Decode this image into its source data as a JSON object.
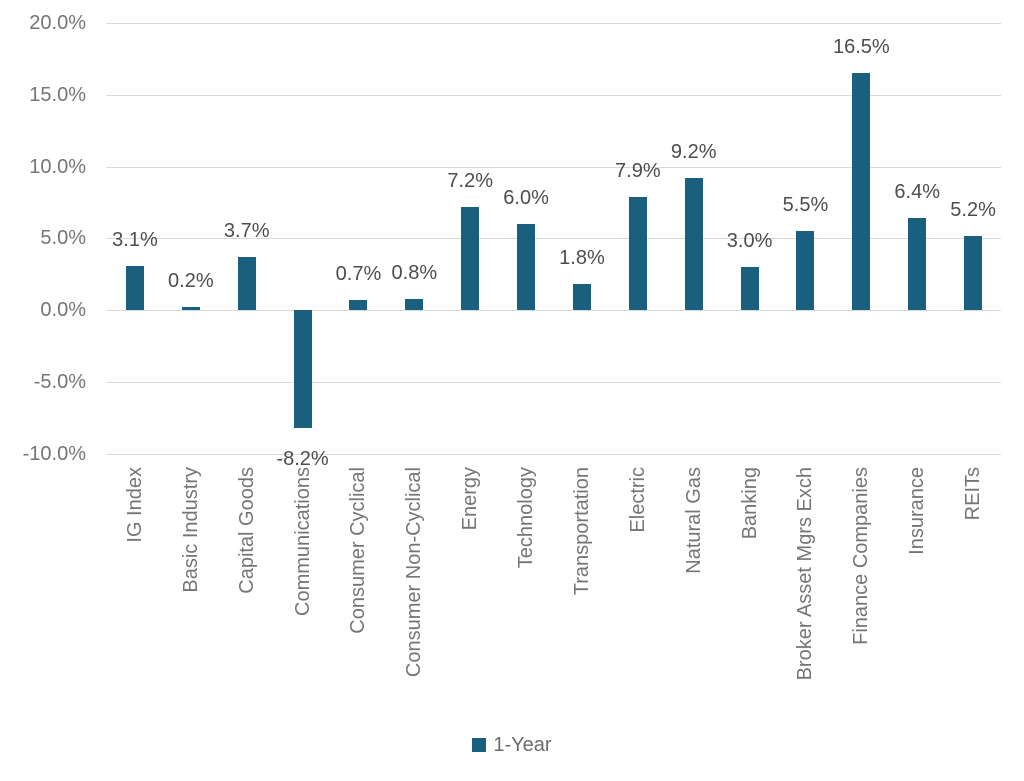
{
  "chart_data": {
    "type": "bar",
    "title": "",
    "categories": [
      "IG Index",
      "Basic Industry",
      "Capital Goods",
      "Communications",
      "Consumer Cyclical",
      "Consumer Non-Cyclical",
      "Energy",
      "Technology",
      "Transportation",
      "Electric",
      "Natural Gas",
      "Banking",
      "Broker Asset Mgrs Exch",
      "Finance Companies",
      "Insurance",
      "REITs"
    ],
    "series": [
      {
        "name": "1-Year",
        "values": [
          3.1,
          0.2,
          3.7,
          -8.2,
          0.7,
          0.8,
          7.2,
          6.0,
          1.8,
          7.9,
          9.2,
          3.0,
          5.5,
          16.5,
          6.4,
          5.2
        ]
      }
    ],
    "data_labels": [
      "3.1%",
      "0.2%",
      "3.7%",
      "-8.2%",
      "0.7%",
      "0.8%",
      "7.2%",
      "6.0%",
      "1.8%",
      "7.9%",
      "9.2%",
      "3.0%",
      "5.5%",
      "16.5%",
      "6.4%",
      "5.2%"
    ],
    "y_axis": {
      "tick_labels": [
        "20.0%",
        "15.0%",
        "10.0%",
        "5.0%",
        "0.0%",
        "-5.0%",
        "-10.0%"
      ],
      "min": -10,
      "max": 20,
      "step": 5
    },
    "grid": true,
    "legend": {
      "position": "bottom",
      "entries": [
        "1-Year"
      ]
    },
    "colors": {
      "bar": "#1b5f7e",
      "axis_text": "#757575",
      "data_label_text": "#4d4d4d",
      "gridline": "#d9d9d9",
      "background": "#ffffff"
    }
  }
}
